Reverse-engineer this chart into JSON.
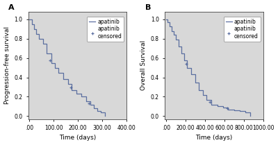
{
  "panel_A": {
    "label": "A",
    "ylabel": "Progression-free survival",
    "xlabel": "Time (days)",
    "xlim": [
      -5,
      400
    ],
    "ylim": [
      -0.03,
      1.08
    ],
    "xticks": [
      0,
      100,
      200,
      300,
      400
    ],
    "xtick_labels": [
      ".00",
      "100.00",
      "200.00",
      "300.00",
      "400.00"
    ],
    "yticks": [
      0.0,
      0.2,
      0.4,
      0.6,
      0.8,
      1.0
    ],
    "km_times": [
      0,
      10,
      20,
      28,
      40,
      55,
      70,
      90,
      105,
      120,
      140,
      160,
      175,
      195,
      215,
      235,
      250,
      265,
      280,
      295,
      310
    ],
    "km_survival": [
      1.0,
      0.95,
      0.9,
      0.85,
      0.8,
      0.75,
      0.65,
      0.55,
      0.5,
      0.45,
      0.38,
      0.33,
      0.27,
      0.23,
      0.2,
      0.15,
      0.12,
      0.08,
      0.05,
      0.04,
      0.0
    ],
    "censor_times": [
      85,
      170,
      245
    ],
    "censor_survival": [
      0.575,
      0.3,
      0.135
    ]
  },
  "panel_B": {
    "label": "B",
    "ylabel": "Overall Survival",
    "xlabel": "Time (days)",
    "xlim": [
      -10,
      1000
    ],
    "ylim": [
      -0.03,
      1.08
    ],
    "xticks": [
      0,
      200,
      400,
      600,
      800,
      1000
    ],
    "xtick_labels": [
      ".00",
      "200.00",
      "400.00",
      "600.00",
      "800.00",
      "1000.00"
    ],
    "yticks": [
      0.0,
      0.2,
      0.4,
      0.6,
      0.8,
      1.0
    ],
    "km_times": [
      0,
      20,
      40,
      60,
      80,
      100,
      130,
      160,
      190,
      220,
      260,
      300,
      340,
      380,
      420,
      470,
      530,
      590,
      640,
      700,
      760,
      820,
      870
    ],
    "km_survival": [
      1.0,
      0.97,
      0.93,
      0.88,
      0.84,
      0.79,
      0.72,
      0.65,
      0.58,
      0.5,
      0.43,
      0.35,
      0.27,
      0.22,
      0.17,
      0.12,
      0.1,
      0.09,
      0.07,
      0.06,
      0.05,
      0.04,
      0.0
    ],
    "censor_times": [
      210,
      450,
      630
    ],
    "censor_survival": [
      0.54,
      0.145,
      0.08
    ]
  },
  "line_color": "#5b6fa0",
  "plot_bg_color": "#d8d8d8",
  "fig_bg_color": "#ffffff",
  "tick_label_fontsize": 5.5,
  "axis_label_fontsize": 6.5,
  "legend_fontsize": 5.5,
  "panel_label_fontsize": 8
}
